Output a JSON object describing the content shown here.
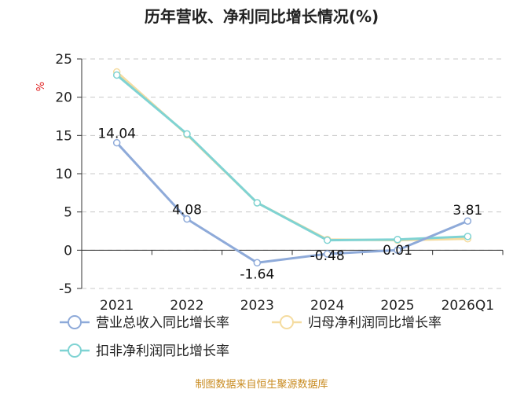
{
  "chart_data": {
    "type": "line",
    "title": "历年营收、净利同比增长情况(%)",
    "ylabel": "%",
    "categories": [
      "2021",
      "2022",
      "2023",
      "2024",
      "2025",
      "2026Q1"
    ],
    "ylim": [
      -5,
      25
    ],
    "yticks": [
      -5,
      0,
      5,
      10,
      15,
      20,
      25
    ],
    "grid": true,
    "legend_position": "bottom",
    "series": [
      {
        "name": "营业总收入同比增长率",
        "color": "#8eaad9",
        "values": [
          14.04,
          4.08,
          -1.64,
          -0.48,
          0.01,
          3.81
        ],
        "data_labels": [
          "14.04",
          "4.08",
          "-1.64",
          "-0.48",
          "0.01",
          "3.81"
        ]
      },
      {
        "name": "归母净利润同比增长率",
        "color": "#f5dca0",
        "values": [
          23.3,
          15.1,
          6.2,
          1.4,
          1.3,
          1.5
        ]
      },
      {
        "name": "扣非净利润同比增长率",
        "color": "#7fd3d3",
        "values": [
          22.9,
          15.2,
          6.2,
          1.3,
          1.4,
          1.8
        ]
      }
    ]
  },
  "footer": {
    "source": "制图数据来自恒生聚源数据库"
  }
}
